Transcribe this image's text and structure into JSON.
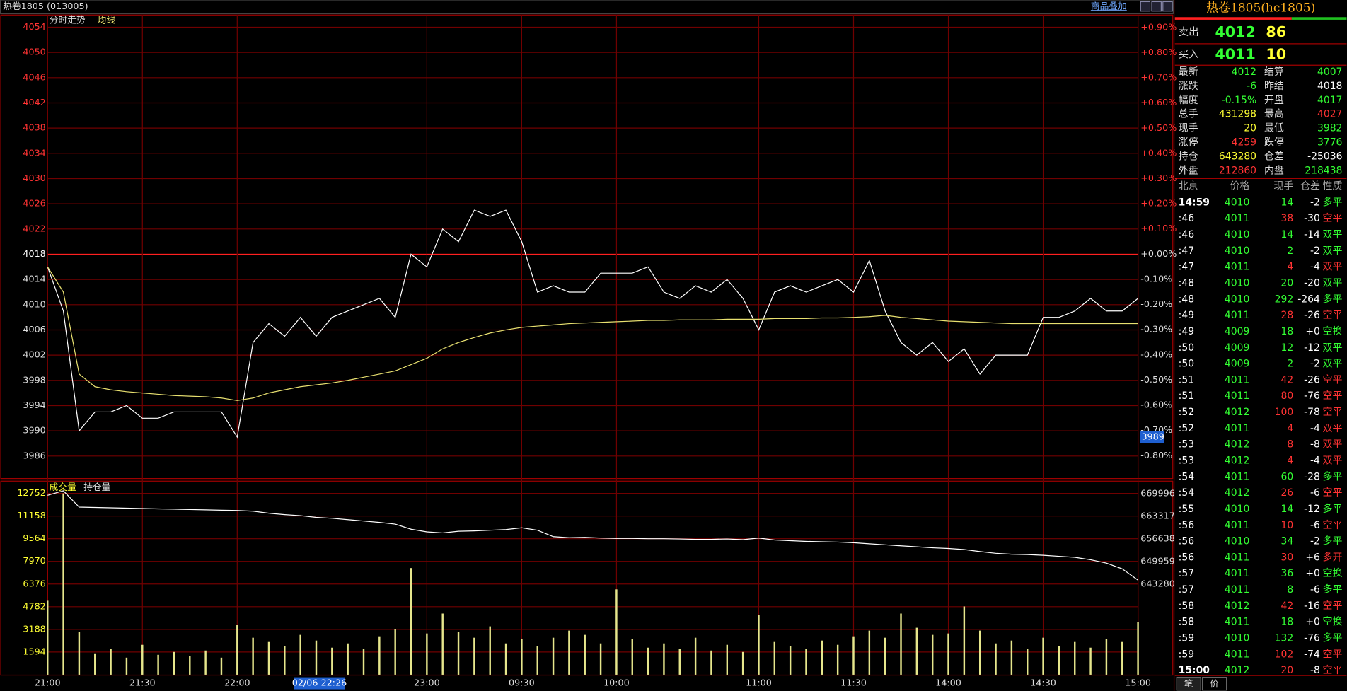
{
  "header": {
    "title": "热卷1805 (013005)",
    "overlay": "商品叠加"
  },
  "price_chart": {
    "type": "line",
    "series": [
      {
        "name": "分时走势",
        "color": "#ffffff",
        "values": [
          4016,
          4009,
          3990,
          3993,
          3993,
          3994,
          3992,
          3992,
          3993,
          3993,
          3993,
          3993,
          3989,
          4004,
          4007,
          4005,
          4008,
          4005,
          4008,
          4009,
          4010,
          4011,
          4008,
          4018,
          4016,
          4022,
          4020,
          4025,
          4024,
          4025,
          4020,
          4012,
          4013,
          4012,
          4012,
          4015,
          4015,
          4015,
          4016,
          4012,
          4011,
          4013,
          4012,
          4014,
          4011,
          4006,
          4012,
          4013,
          4012,
          4013,
          4014,
          4012,
          4017,
          4009,
          4004,
          4002,
          4004,
          4001,
          4003,
          3999,
          4002,
          4002,
          4002,
          4008,
          4008,
          4009,
          4011,
          4009,
          4009,
          4011
        ]
      },
      {
        "name": "均线",
        "color": "#e8e070",
        "values": [
          4016,
          4012,
          3999,
          3997,
          3996.5,
          3996.2,
          3996,
          3995.8,
          3995.6,
          3995.5,
          3995.4,
          3995.2,
          3994.8,
          3995.2,
          3996,
          3996.5,
          3997,
          3997.3,
          3997.6,
          3998,
          3998.5,
          3999,
          3999.5,
          4000.5,
          4001.5,
          4003,
          4004,
          4004.8,
          4005.5,
          4006,
          4006.4,
          4006.6,
          4006.8,
          4007,
          4007.1,
          4007.2,
          4007.3,
          4007.4,
          4007.5,
          4007.5,
          4007.6,
          4007.6,
          4007.6,
          4007.7,
          4007.7,
          4007.7,
          4007.8,
          4007.8,
          4007.8,
          4007.9,
          4007.9,
          4008,
          4008.1,
          4008.3,
          4008,
          4007.8,
          4007.6,
          4007.4,
          4007.3,
          4007.2,
          4007.1,
          4007,
          4007,
          4007,
          4007,
          4007,
          4007,
          4007,
          4007,
          4007
        ]
      }
    ],
    "x": [
      0,
      5,
      10,
      15,
      20,
      25,
      30,
      35,
      40,
      45,
      50,
      55,
      60,
      65,
      70,
      75,
      80,
      85,
      90,
      95,
      100,
      105,
      110,
      115,
      120,
      125,
      130,
      135,
      140,
      145,
      150,
      155,
      160,
      165,
      170,
      175,
      180,
      185,
      190,
      195,
      200,
      205,
      210,
      215,
      220,
      225,
      230,
      235,
      240,
      245,
      250,
      255,
      260,
      265,
      270,
      275,
      280,
      285,
      290,
      295,
      300,
      305,
      310,
      315,
      320,
      325,
      330,
      335,
      340,
      345
    ],
    "xlim": [
      0,
      345
    ],
    "xticks": [
      {
        "value": 0,
        "label": "21:00"
      },
      {
        "value": 30,
        "label": "21:30"
      },
      {
        "value": 60,
        "label": "22:00"
      },
      {
        "value": 120,
        "label": "23:00"
      },
      {
        "value": 150,
        "label": "09:30"
      },
      {
        "value": 180,
        "label": "10:00"
      },
      {
        "value": 225,
        "label": "11:00"
      },
      {
        "value": 255,
        "label": "11:30"
      },
      {
        "value": 285,
        "label": "14:00"
      },
      {
        "value": 315,
        "label": "14:30"
      },
      {
        "value": 345,
        "label": "15:00"
      }
    ],
    "ylim": [
      3982.5,
      4056
    ],
    "yticks": [
      4054,
      4050,
      4046,
      4042,
      4038,
      4034,
      4030,
      4026,
      4022,
      4018,
      4014,
      4010,
      4006,
      4002,
      3998,
      3994,
      3990,
      3986
    ],
    "y2lim": [
      -0.889,
      0.951
    ],
    "y2ticks": [
      {
        "value": 0.9,
        "label": "+0.90%"
      },
      {
        "value": 0.8,
        "label": "+0.80%"
      },
      {
        "value": 0.7,
        "label": "+0.70%"
      },
      {
        "value": 0.6,
        "label": "+0.60%"
      },
      {
        "value": 0.5,
        "label": "+0.50%"
      },
      {
        "value": 0.4,
        "label": "+0.40%"
      },
      {
        "value": 0.3,
        "label": "+0.30%"
      },
      {
        "value": 0.2,
        "label": "+0.20%"
      },
      {
        "value": 0.1,
        "label": "+0.10%"
      },
      {
        "value": 0,
        "label": "+0.00%"
      },
      {
        "value": -0.1,
        "label": "-0.10%"
      },
      {
        "value": -0.2,
        "label": "-0.20%"
      },
      {
        "value": -0.3,
        "label": "-0.30%"
      },
      {
        "value": -0.4,
        "label": "-0.40%"
      },
      {
        "value": -0.5,
        "label": "-0.50%"
      },
      {
        "value": -0.6,
        "label": "-0.60%"
      },
      {
        "value": -0.7,
        "label": "-0.70%"
      },
      {
        "value": -0.8,
        "label": "-0.80%"
      }
    ],
    "ref_price": 4018,
    "grid": true,
    "cursor": {
      "x": 86,
      "x_label": "02/06 22:26",
      "y": 3989
    }
  },
  "volume_chart": {
    "type": "bar",
    "series": [
      {
        "name": "成交量",
        "color": "#e6e68c",
        "values": [
          5200,
          12752,
          3000,
          1500,
          1800,
          1200,
          2100,
          1400,
          1600,
          1300,
          1700,
          1200,
          3500,
          2600,
          2300,
          2000,
          2800,
          2400,
          1900,
          2200,
          1800,
          2700,
          3200,
          7500,
          2900,
          4300,
          3000,
          2600,
          3400,
          2200,
          2500,
          2000,
          2600,
          3100,
          2800,
          2200,
          6000,
          2500,
          1900,
          2200,
          1800,
          2600,
          1700,
          2100,
          1600,
          4200,
          2300,
          2000,
          1800,
          2400,
          2100,
          2700,
          3100,
          2600,
          4300,
          3300,
          2800,
          2900,
          4800,
          3100,
          2200,
          2400,
          1800,
          2600,
          2000,
          2300,
          1900,
          2500,
          2300,
          3700
        ]
      },
      {
        "name": "持仓量",
        "color": "#ffffff",
        "axis": "y2",
        "values": [
          669500,
          670800,
          666000,
          665900,
          665800,
          665700,
          665600,
          665500,
          665400,
          665300,
          665200,
          665100,
          665000,
          664800,
          664200,
          663800,
          663500,
          663000,
          662700,
          662300,
          661900,
          661500,
          661000,
          659500,
          658700,
          658400,
          658900,
          659000,
          659200,
          659400,
          659900,
          659200,
          657300,
          657000,
          657100,
          656900,
          656800,
          656800,
          656700,
          656700,
          656600,
          656500,
          656500,
          656600,
          656400,
          656900,
          656300,
          656100,
          655900,
          655800,
          655700,
          655500,
          655200,
          654900,
          654600,
          654300,
          654000,
          653800,
          653500,
          652900,
          652400,
          652100,
          652000,
          651800,
          651500,
          651200,
          650500,
          649500,
          647800,
          644500
        ]
      }
    ],
    "x": [
      0,
      5,
      10,
      15,
      20,
      25,
      30,
      35,
      40,
      45,
      50,
      55,
      60,
      65,
      70,
      75,
      80,
      85,
      90,
      95,
      100,
      105,
      110,
      115,
      120,
      125,
      130,
      135,
      140,
      145,
      150,
      155,
      160,
      165,
      170,
      175,
      180,
      185,
      190,
      195,
      200,
      205,
      210,
      215,
      220,
      225,
      230,
      235,
      240,
      245,
      250,
      255,
      260,
      265,
      270,
      275,
      280,
      285,
      290,
      295,
      300,
      305,
      310,
      315,
      320,
      325,
      330,
      335,
      340,
      345
    ],
    "xlim": [
      0,
      345
    ],
    "ylim": [
      0,
      13525
    ],
    "yticks": [
      12752,
      11158,
      9564,
      7970,
      6376,
      4782,
      3188,
      1594
    ],
    "y2lim": [
      616614,
      673285
    ],
    "y2ticks": [
      669996,
      663317,
      656638,
      649959,
      643280
    ]
  },
  "quote": {
    "name": "热卷1805(hc1805)",
    "sell": {
      "label": "卖出",
      "price": 4012,
      "volume": 86
    },
    "buy": {
      "label": "买入",
      "price": 4011,
      "volume": 10
    }
  },
  "stats": {
    "rows": [
      [
        "最新",
        4012,
        "结算",
        4007
      ],
      [
        "涨跌",
        -6,
        "昨结",
        4018
      ],
      [
        "幅度",
        "-0.15%",
        "开盘",
        4017
      ],
      [
        "总手",
        431298,
        "最高",
        4027
      ],
      [
        "现手",
        20,
        "最低",
        3982
      ],
      [
        "涨停",
        4259,
        "跌停",
        3776
      ],
      [
        "持仓",
        643280,
        "仓差",
        -25036
      ],
      [
        "外盘",
        212860,
        "内盘",
        218438
      ]
    ],
    "value_colors": [
      [
        "#33ff33",
        "#33ff33"
      ],
      [
        "#33ff33",
        "#ffffff"
      ],
      [
        "#33ff33",
        "#33ff33"
      ],
      [
        "#ffff33",
        "#ff3333"
      ],
      [
        "#ffff33",
        "#33ff33"
      ],
      [
        "#ff3333",
        "#33ff33"
      ],
      [
        "#ffff33",
        "#ffffff"
      ],
      [
        "#ff3333",
        "#33ff33"
      ]
    ]
  },
  "trades": {
    "columns": [
      "北京",
      "价格",
      "现手",
      "仓差",
      "性质"
    ],
    "rows": [
      [
        "14:59",
        4010,
        14,
        -2,
        "多平"
      ],
      [
        ":46",
        4011,
        38,
        -30,
        "空平"
      ],
      [
        ":46",
        4010,
        14,
        -14,
        "双平"
      ],
      [
        ":47",
        4010,
        2,
        -2,
        "双平"
      ],
      [
        ":47",
        4011,
        4,
        -4,
        "双平"
      ],
      [
        ":48",
        4010,
        20,
        -20,
        "双平"
      ],
      [
        ":48",
        4010,
        292,
        -264,
        "多平"
      ],
      [
        ":49",
        4011,
        28,
        -26,
        "空平"
      ],
      [
        ":49",
        4009,
        18,
        "+0",
        "空换"
      ],
      [
        ":50",
        4009,
        12,
        -12,
        "双平"
      ],
      [
        ":50",
        4009,
        2,
        -2,
        "双平"
      ],
      [
        ":51",
        4011,
        42,
        -26,
        "空平"
      ],
      [
        ":51",
        4011,
        80,
        -76,
        "空平"
      ],
      [
        ":52",
        4012,
        100,
        -78,
        "空平"
      ],
      [
        ":52",
        4011,
        4,
        -4,
        "双平"
      ],
      [
        ":53",
        4012,
        8,
        -8,
        "双平"
      ],
      [
        ":53",
        4012,
        4,
        -4,
        "双平"
      ],
      [
        ":54",
        4011,
        60,
        -28,
        "多平"
      ],
      [
        ":54",
        4012,
        26,
        -6,
        "空平"
      ],
      [
        ":55",
        4010,
        14,
        -12,
        "多平"
      ],
      [
        ":56",
        4011,
        10,
        -6,
        "空平"
      ],
      [
        ":56",
        4010,
        34,
        -2,
        "多平"
      ],
      [
        ":56",
        4011,
        30,
        "+6",
        "多开"
      ],
      [
        ":57",
        4011,
        36,
        "+0",
        "空换"
      ],
      [
        ":57",
        4011,
        8,
        -6,
        "多平"
      ],
      [
        ":58",
        4012,
        42,
        -16,
        "空平"
      ],
      [
        ":58",
        4011,
        18,
        "+0",
        "空换"
      ],
      [
        ":59",
        4010,
        132,
        -76,
        "多平"
      ],
      [
        ":59",
        4011,
        102,
        -74,
        "空平"
      ],
      [
        "15:00",
        4012,
        20,
        -8,
        "空平"
      ]
    ],
    "row_colors": [
      "#33ff33",
      "#ff3333",
      "#33ff33",
      "#33ff33",
      "#ff3333",
      "#33ff33",
      "#33ff33",
      "#ff3333",
      "#33ff33",
      "#33ff33",
      "#33ff33",
      "#ff3333",
      "#ff3333",
      "#ff3333",
      "#ff3333",
      "#ff3333",
      "#ff3333",
      "#33ff33",
      "#ff3333",
      "#33ff33",
      "#ff3333",
      "#33ff33",
      "#ff3333",
      "#33ff33",
      "#33ff33",
      "#ff3333",
      "#33ff33",
      "#33ff33",
      "#ff3333",
      "#ff3333"
    ]
  },
  "tabs": [
    "笔",
    "价"
  ]
}
